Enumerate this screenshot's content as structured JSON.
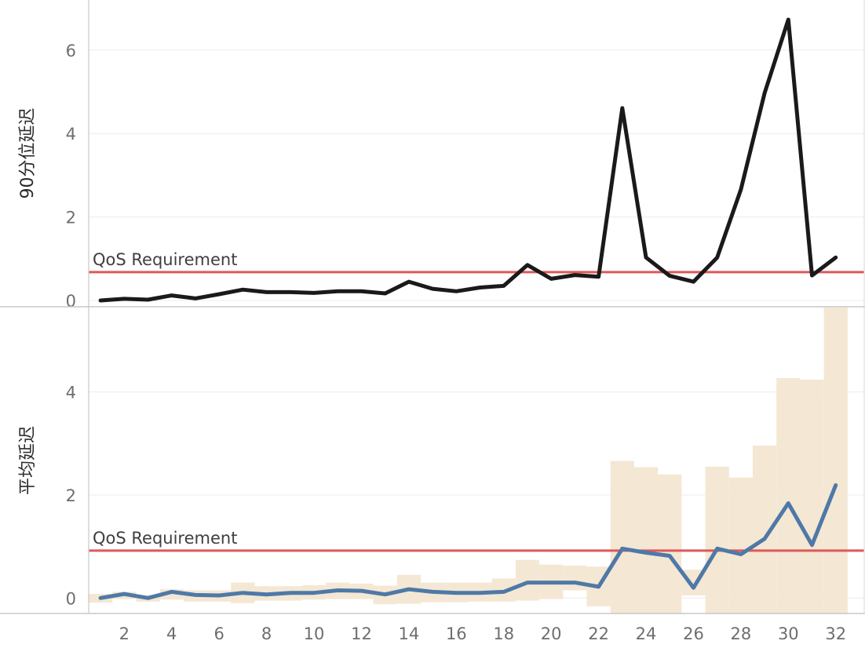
{
  "chart_data": [
    {
      "type": "line",
      "ylabel": "90分位延迟",
      "x": [
        1,
        2,
        3,
        4,
        5,
        6,
        7,
        8,
        9,
        10,
        11,
        12,
        13,
        14,
        15,
        16,
        17,
        18,
        19,
        20,
        21,
        22,
        23,
        24,
        25,
        26,
        27,
        28,
        29,
        30,
        31,
        32
      ],
      "series": [
        {
          "values": [
            0.0,
            0.04,
            0.02,
            0.12,
            0.05,
            0.15,
            0.26,
            0.2,
            0.2,
            0.18,
            0.22,
            0.22,
            0.17,
            0.45,
            0.28,
            0.22,
            0.31,
            0.35,
            0.85,
            0.52,
            0.61,
            0.57,
            4.61,
            1.03,
            0.59,
            0.45,
            1.03,
            2.66,
            4.97,
            6.73,
            0.6,
            1.03
          ],
          "color": "#1a1a1a"
        }
      ],
      "reference_line": {
        "label": "QoS Requirement",
        "value": 0.68,
        "color": "#e05759"
      },
      "yticks": [
        0,
        2,
        4,
        6
      ],
      "ylim": [
        -0.15,
        7.2
      ],
      "xlim": [
        0.5,
        33.2
      ],
      "grid": true
    },
    {
      "type": "line",
      "ylabel": "平均延迟",
      "x": [
        1,
        2,
        3,
        4,
        5,
        6,
        7,
        8,
        9,
        10,
        11,
        12,
        13,
        14,
        15,
        16,
        17,
        18,
        19,
        20,
        21,
        22,
        23,
        24,
        25,
        26,
        27,
        28,
        29,
        30,
        31,
        32
      ],
      "series": [
        {
          "values": [
            0.0,
            0.08,
            0.0,
            0.12,
            0.06,
            0.05,
            0.1,
            0.07,
            0.1,
            0.1,
            0.15,
            0.14,
            0.07,
            0.17,
            0.12,
            0.1,
            0.1,
            0.12,
            0.3,
            0.3,
            0.3,
            0.22,
            0.96,
            0.88,
            0.82,
            0.2,
            0.96,
            0.85,
            1.15,
            1.84,
            1.03,
            2.19
          ],
          "color": "#4e79a7"
        }
      ],
      "bands": [
        {
          "low": -0.09,
          "high": 0.08
        },
        {
          "low": -0.02,
          "high": 0.12
        },
        {
          "low": -0.07,
          "high": 0.06
        },
        {
          "low": -0.03,
          "high": 0.17
        },
        {
          "low": -0.07,
          "high": 0.15
        },
        {
          "low": -0.07,
          "high": 0.15
        },
        {
          "low": -0.1,
          "high": 0.3
        },
        {
          "low": -0.05,
          "high": 0.23
        },
        {
          "low": -0.05,
          "high": 0.23
        },
        {
          "low": -0.03,
          "high": 0.25
        },
        {
          "low": -0.02,
          "high": 0.3
        },
        {
          "low": -0.02,
          "high": 0.28
        },
        {
          "low": -0.12,
          "high": 0.24
        },
        {
          "low": -0.11,
          "high": 0.45
        },
        {
          "low": -0.08,
          "high": 0.3
        },
        {
          "low": -0.08,
          "high": 0.3
        },
        {
          "low": -0.07,
          "high": 0.3
        },
        {
          "low": -0.07,
          "high": 0.38
        },
        {
          "low": -0.05,
          "high": 0.74
        },
        {
          "low": -0.02,
          "high": 0.65
        },
        {
          "low": 0.15,
          "high": 0.63
        },
        {
          "low": -0.16,
          "high": 0.61
        },
        {
          "low": -0.3,
          "high": 2.66
        },
        {
          "low": -0.3,
          "high": 2.54
        },
        {
          "low": -0.3,
          "high": 2.4
        },
        {
          "low": 0.05,
          "high": 0.55
        },
        {
          "low": -0.3,
          "high": 2.55
        },
        {
          "low": -0.3,
          "high": 2.34
        },
        {
          "low": -0.3,
          "high": 2.96
        },
        {
          "low": -0.3,
          "high": 4.27
        },
        {
          "low": -0.3,
          "high": 4.24
        },
        {
          "low": -0.3,
          "high": 5.64
        }
      ],
      "band_color": "#f4e7d4",
      "reference_line": {
        "label": "QoS Requirement",
        "value": 0.92,
        "color": "#e05759"
      },
      "yticks": [
        0,
        2,
        4
      ],
      "xticks": [
        2,
        4,
        6,
        8,
        10,
        12,
        14,
        16,
        18,
        20,
        22,
        24,
        26,
        28,
        30,
        32
      ],
      "ylim": [
        -0.3,
        5.64
      ],
      "xlim": [
        0.5,
        33.2
      ],
      "grid": true
    }
  ]
}
